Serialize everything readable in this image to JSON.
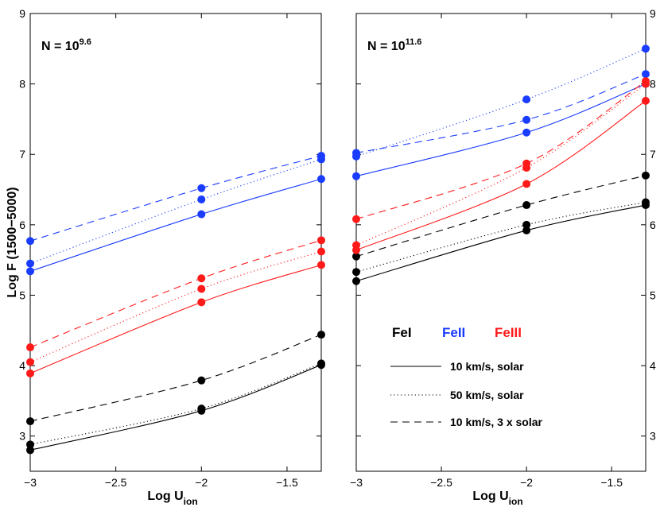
{
  "chart_data": [
    {
      "type": "line",
      "panel": "left",
      "title_base": "N = 10",
      "title_exp": "9.6",
      "xlabel": "Log U",
      "xlabel_sub": "ion",
      "ylabel": "Log F (1500−5000)",
      "xlim": [
        -3.0,
        -1.3
      ],
      "ylim": [
        2.5,
        9.0
      ],
      "xticks": [
        -3,
        -2.5,
        -2,
        -1.5
      ],
      "xtick_labels": [
        "−3",
        "−2.5",
        "−2",
        "−1.5"
      ],
      "yticks": [
        3,
        4,
        5,
        6,
        7,
        8,
        9
      ],
      "ytick_labels": [
        "3",
        "4",
        "5",
        "6",
        "7",
        "8",
        "9"
      ],
      "series": [
        {
          "ion": "FeI",
          "case": "10 km/s, solar",
          "color": "#000000",
          "style": "solid",
          "x": [
            -3.0,
            -2.0,
            -1.3
          ],
          "y": [
            2.8,
            3.36,
            4.01
          ]
        },
        {
          "ion": "FeI",
          "case": "50 km/s, solar",
          "color": "#000000",
          "style": "dotted",
          "x": [
            -3.0,
            -2.0,
            -1.3
          ],
          "y": [
            2.88,
            3.39,
            4.03
          ]
        },
        {
          "ion": "FeI",
          "case": "10 km/s, 3 x solar",
          "color": "#000000",
          "style": "dashed",
          "x": [
            -3.0,
            -2.0,
            -1.3
          ],
          "y": [
            3.21,
            3.79,
            4.44
          ]
        },
        {
          "ion": "FeII",
          "case": "10 km/s, solar",
          "color": "#1a3cff",
          "style": "solid",
          "x": [
            -3.0,
            -2.0,
            -1.3
          ],
          "y": [
            5.34,
            6.15,
            6.65
          ]
        },
        {
          "ion": "FeII",
          "case": "50 km/s, solar",
          "color": "#1a3cff",
          "style": "dotted",
          "x": [
            -3.0,
            -2.0,
            -1.3
          ],
          "y": [
            5.45,
            6.36,
            6.93
          ]
        },
        {
          "ion": "FeII",
          "case": "10 km/s, 3 x solar",
          "color": "#1a3cff",
          "style": "dashed",
          "x": [
            -3.0,
            -2.0,
            -1.3
          ],
          "y": [
            5.77,
            6.52,
            6.98
          ]
        },
        {
          "ion": "FeIII",
          "case": "10 km/s, solar",
          "color": "#ff1a1a",
          "style": "solid",
          "x": [
            -3.0,
            -2.0,
            -1.3
          ],
          "y": [
            3.89,
            4.9,
            5.43
          ]
        },
        {
          "ion": "FeIII",
          "case": "50 km/s, solar",
          "color": "#ff1a1a",
          "style": "dotted",
          "x": [
            -3.0,
            -2.0,
            -1.3
          ],
          "y": [
            4.05,
            5.09,
            5.62
          ]
        },
        {
          "ion": "FeIII",
          "case": "10 km/s, 3 x solar",
          "color": "#ff1a1a",
          "style": "dashed",
          "x": [
            -3.0,
            -2.0,
            -1.3
          ],
          "y": [
            4.26,
            5.24,
            5.78
          ]
        }
      ]
    },
    {
      "type": "line",
      "panel": "right",
      "title_base": "N = 10",
      "title_exp": "11.6",
      "xlabel": "Log U",
      "xlabel_sub": "ion",
      "ylabel": "",
      "xlim": [
        -3.0,
        -1.3
      ],
      "ylim": [
        2.5,
        9.0
      ],
      "xticks": [
        -3,
        -2.5,
        -2,
        -1.5
      ],
      "xtick_labels": [
        "−3",
        "−2.5",
        "−2",
        "−1.5"
      ],
      "yticks": [
        3,
        4,
        5,
        6,
        7,
        8,
        9
      ],
      "ytick_labels": [
        "3",
        "4",
        "5",
        "6",
        "7",
        "8",
        "9"
      ],
      "series": [
        {
          "ion": "FeI",
          "case": "10 km/s, solar",
          "color": "#000000",
          "style": "solid",
          "x": [
            -3.0,
            -2.0,
            -1.3
          ],
          "y": [
            5.2,
            5.92,
            6.28
          ]
        },
        {
          "ion": "FeI",
          "case": "50 km/s, solar",
          "color": "#000000",
          "style": "dotted",
          "x": [
            -3.0,
            -2.0,
            -1.3
          ],
          "y": [
            5.33,
            6.0,
            6.32
          ]
        },
        {
          "ion": "FeI",
          "case": "10 km/s, 3 x solar",
          "color": "#000000",
          "style": "dashed",
          "x": [
            -3.0,
            -2.0,
            -1.3
          ],
          "y": [
            5.55,
            6.28,
            6.7
          ]
        },
        {
          "ion": "FeII",
          "case": "10 km/s, solar",
          "color": "#1a3cff",
          "style": "solid",
          "x": [
            -3.0,
            -2.0,
            -1.3
          ],
          "y": [
            6.69,
            7.31,
            8.0
          ]
        },
        {
          "ion": "FeII",
          "case": "50 km/s, solar",
          "color": "#1a3cff",
          "style": "dotted",
          "x": [
            -3.0,
            -2.0,
            -1.3
          ],
          "y": [
            6.97,
            7.78,
            8.5
          ]
        },
        {
          "ion": "FeII",
          "case": "10 km/s, 3 x solar",
          "color": "#1a3cff",
          "style": "dashed",
          "x": [
            -3.0,
            -2.0,
            -1.3
          ],
          "y": [
            7.02,
            7.49,
            8.14
          ]
        },
        {
          "ion": "FeIII",
          "case": "10 km/s, solar",
          "color": "#ff1a1a",
          "style": "solid",
          "x": [
            -3.0,
            -2.0,
            -1.3
          ],
          "y": [
            5.64,
            6.58,
            7.76
          ]
        },
        {
          "ion": "FeIII",
          "case": "50 km/s, solar",
          "color": "#ff1a1a",
          "style": "dotted",
          "x": [
            -3.0,
            -2.0,
            -1.3
          ],
          "y": [
            5.71,
            6.81,
            8.0
          ]
        },
        {
          "ion": "FeIII",
          "case": "10 km/s, 3 x solar",
          "color": "#ff1a1a",
          "style": "dashed",
          "x": [
            -3.0,
            -2.0,
            -1.3
          ],
          "y": [
            6.08,
            6.87,
            8.04
          ]
        }
      ]
    }
  ],
  "legend": {
    "placement": "right-panel lower-middle",
    "ions": [
      {
        "label": "FeI",
        "color": "#000000"
      },
      {
        "label": "FeII",
        "color": "#1a3cff"
      },
      {
        "label": "FeIII",
        "color": "#ff1a1a"
      }
    ],
    "lines": [
      {
        "label": "10 km/s, solar",
        "style": "solid"
      },
      {
        "label": "50 km/s, solar",
        "style": "dotted"
      },
      {
        "label": "10 km/s, 3 x solar",
        "style": "dashed"
      }
    ]
  }
}
